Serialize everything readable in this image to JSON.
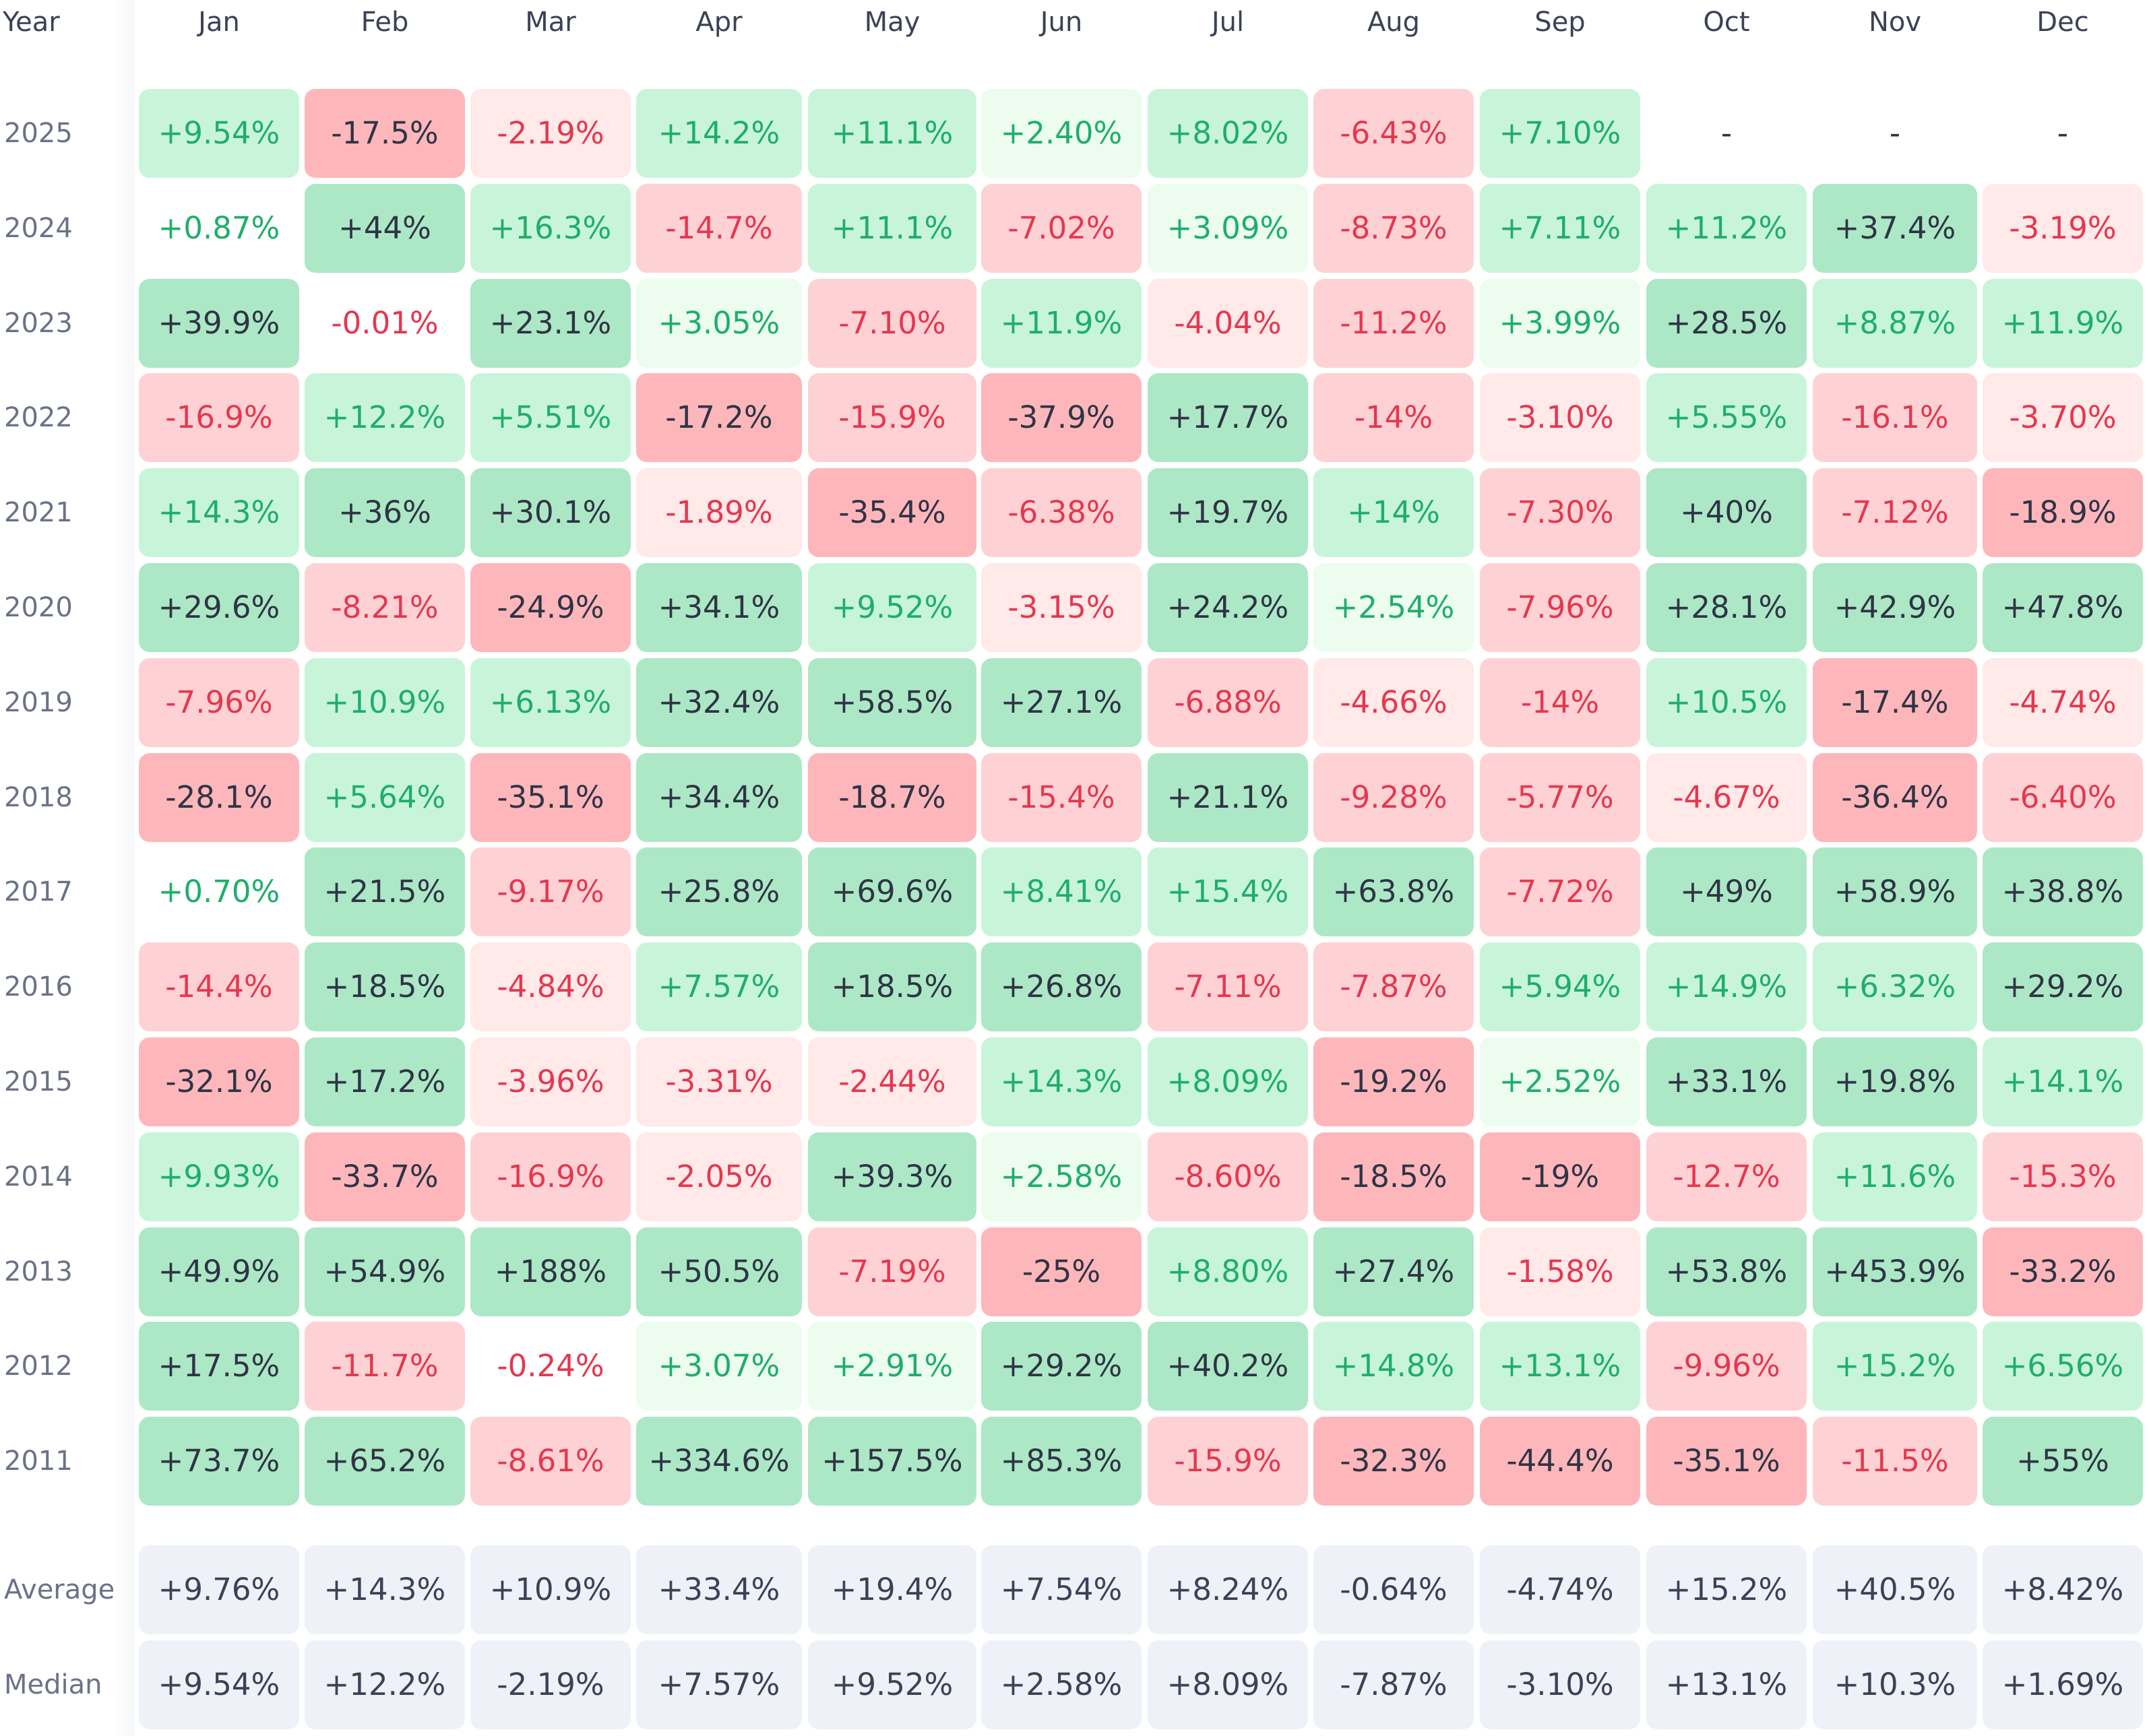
{
  "header": {
    "year_label": "Year"
  },
  "colors": {
    "pos_text": "#1fae6a",
    "neg_text": "#e5374f",
    "dark_text": "#2f3445",
    "pos_shades": [
      "#ffffff",
      "#ecfcef",
      "#c8f5da",
      "#ace8c6"
    ],
    "neg_shades": [
      "#ffffff",
      "#ffe9e9",
      "#fed2d4",
      "#fdb7bb"
    ],
    "summary_bg": "#eef1f7"
  },
  "chart_data": {
    "type": "heatmap",
    "x_categories": [
      "Jan",
      "Feb",
      "Mar",
      "Apr",
      "May",
      "Jun",
      "Jul",
      "Aug",
      "Sep",
      "Oct",
      "Nov",
      "Dec"
    ],
    "rows": [
      {
        "year": "2025",
        "cells": [
          "+9.54%",
          "-17.5%",
          "-2.19%",
          "+14.2%",
          "+11.1%",
          "+2.40%",
          "+8.02%",
          "-6.43%",
          "+7.10%",
          "-",
          "-",
          "-"
        ],
        "values": [
          9.54,
          -17.5,
          -2.19,
          14.2,
          11.1,
          2.4,
          8.02,
          -6.43,
          7.1,
          null,
          null,
          null
        ]
      },
      {
        "year": "2024",
        "cells": [
          "+0.87%",
          "+44%",
          "+16.3%",
          "-14.7%",
          "+11.1%",
          "-7.02%",
          "+3.09%",
          "-8.73%",
          "+7.11%",
          "+11.2%",
          "+37.4%",
          "-3.19%"
        ],
        "values": [
          0.87,
          44,
          16.3,
          -14.7,
          11.1,
          -7.02,
          3.09,
          -8.73,
          7.11,
          11.2,
          37.4,
          -3.19
        ]
      },
      {
        "year": "2023",
        "cells": [
          "+39.9%",
          "-0.01%",
          "+23.1%",
          "+3.05%",
          "-7.10%",
          "+11.9%",
          "-4.04%",
          "-11.2%",
          "+3.99%",
          "+28.5%",
          "+8.87%",
          "+11.9%"
        ],
        "values": [
          39.9,
          -0.01,
          23.1,
          3.05,
          -7.1,
          11.9,
          -4.04,
          -11.2,
          3.99,
          28.5,
          8.87,
          11.9
        ]
      },
      {
        "year": "2022",
        "cells": [
          "-16.9%",
          "+12.2%",
          "+5.51%",
          "-17.2%",
          "-15.9%",
          "-37.9%",
          "+17.7%",
          "-14%",
          "-3.10%",
          "+5.55%",
          "-16.1%",
          "-3.70%"
        ],
        "values": [
          -16.9,
          12.2,
          5.51,
          -17.2,
          -15.9,
          -37.9,
          17.7,
          -14,
          -3.1,
          5.55,
          -16.1,
          -3.7
        ]
      },
      {
        "year": "2021",
        "cells": [
          "+14.3%",
          "+36%",
          "+30.1%",
          "-1.89%",
          "-35.4%",
          "-6.38%",
          "+19.7%",
          "+14%",
          "-7.30%",
          "+40%",
          "-7.12%",
          "-18.9%"
        ],
        "values": [
          14.3,
          36,
          30.1,
          -1.89,
          -35.4,
          -6.38,
          19.7,
          14,
          -7.3,
          40,
          -7.12,
          -18.9
        ]
      },
      {
        "year": "2020",
        "cells": [
          "+29.6%",
          "-8.21%",
          "-24.9%",
          "+34.1%",
          "+9.52%",
          "-3.15%",
          "+24.2%",
          "+2.54%",
          "-7.96%",
          "+28.1%",
          "+42.9%",
          "+47.8%"
        ],
        "values": [
          29.6,
          -8.21,
          -24.9,
          34.1,
          9.52,
          -3.15,
          24.2,
          2.54,
          -7.96,
          28.1,
          42.9,
          47.8
        ]
      },
      {
        "year": "2019",
        "cells": [
          "-7.96%",
          "+10.9%",
          "+6.13%",
          "+32.4%",
          "+58.5%",
          "+27.1%",
          "-6.88%",
          "-4.66%",
          "-14%",
          "+10.5%",
          "-17.4%",
          "-4.74%"
        ],
        "values": [
          -7.96,
          10.9,
          6.13,
          32.4,
          58.5,
          27.1,
          -6.88,
          -4.66,
          -14,
          10.5,
          -17.4,
          -4.74
        ]
      },
      {
        "year": "2018",
        "cells": [
          "-28.1%",
          "+5.64%",
          "-35.1%",
          "+34.4%",
          "-18.7%",
          "-15.4%",
          "+21.1%",
          "-9.28%",
          "-5.77%",
          "-4.67%",
          "-36.4%",
          "-6.40%"
        ],
        "values": [
          -28.1,
          5.64,
          -35.1,
          34.4,
          -18.7,
          -15.4,
          21.1,
          -9.28,
          -5.77,
          -4.67,
          -36.4,
          -6.4
        ]
      },
      {
        "year": "2017",
        "cells": [
          "+0.70%",
          "+21.5%",
          "-9.17%",
          "+25.8%",
          "+69.6%",
          "+8.41%",
          "+15.4%",
          "+63.8%",
          "-7.72%",
          "+49%",
          "+58.9%",
          "+38.8%"
        ],
        "values": [
          0.7,
          21.5,
          -9.17,
          25.8,
          69.6,
          8.41,
          15.4,
          63.8,
          -7.72,
          49,
          58.9,
          38.8
        ]
      },
      {
        "year": "2016",
        "cells": [
          "-14.4%",
          "+18.5%",
          "-4.84%",
          "+7.57%",
          "+18.5%",
          "+26.8%",
          "-7.11%",
          "-7.87%",
          "+5.94%",
          "+14.9%",
          "+6.32%",
          "+29.2%"
        ],
        "values": [
          -14.4,
          18.5,
          -4.84,
          7.57,
          18.5,
          26.8,
          -7.11,
          -7.87,
          5.94,
          14.9,
          6.32,
          29.2
        ]
      },
      {
        "year": "2015",
        "cells": [
          "-32.1%",
          "+17.2%",
          "-3.96%",
          "-3.31%",
          "-2.44%",
          "+14.3%",
          "+8.09%",
          "-19.2%",
          "+2.52%",
          "+33.1%",
          "+19.8%",
          "+14.1%"
        ],
        "values": [
          -32.1,
          17.2,
          -3.96,
          -3.31,
          -2.44,
          14.3,
          8.09,
          -19.2,
          2.52,
          33.1,
          19.8,
          14.1
        ]
      },
      {
        "year": "2014",
        "cells": [
          "+9.93%",
          "-33.7%",
          "-16.9%",
          "-2.05%",
          "+39.3%",
          "+2.58%",
          "-8.60%",
          "-18.5%",
          "-19%",
          "-12.7%",
          "+11.6%",
          "-15.3%"
        ],
        "values": [
          9.93,
          -33.7,
          -16.9,
          -2.05,
          39.3,
          2.58,
          -8.6,
          -18.5,
          -19,
          -12.7,
          11.6,
          -15.3
        ]
      },
      {
        "year": "2013",
        "cells": [
          "+49.9%",
          "+54.9%",
          "+188%",
          "+50.5%",
          "-7.19%",
          "-25%",
          "+8.80%",
          "+27.4%",
          "-1.58%",
          "+53.8%",
          "+453.9%",
          "-33.2%"
        ],
        "values": [
          49.9,
          54.9,
          188,
          50.5,
          -7.19,
          -25,
          8.8,
          27.4,
          -1.58,
          53.8,
          453.9,
          -33.2
        ]
      },
      {
        "year": "2012",
        "cells": [
          "+17.5%",
          "-11.7%",
          "-0.24%",
          "+3.07%",
          "+2.91%",
          "+29.2%",
          "+40.2%",
          "+14.8%",
          "+13.1%",
          "-9.96%",
          "+15.2%",
          "+6.56%"
        ],
        "values": [
          17.5,
          -11.7,
          -0.24,
          3.07,
          2.91,
          29.2,
          40.2,
          14.8,
          13.1,
          -9.96,
          15.2,
          6.56
        ]
      },
      {
        "year": "2011",
        "cells": [
          "+73.7%",
          "+65.2%",
          "-8.61%",
          "+334.6%",
          "+157.5%",
          "+85.3%",
          "-15.9%",
          "-32.3%",
          "-44.4%",
          "-35.1%",
          "-11.5%",
          "+55%"
        ],
        "values": [
          73.7,
          65.2,
          -8.61,
          334.6,
          157.5,
          85.3,
          -15.9,
          -32.3,
          -44.4,
          -35.1,
          -11.5,
          55
        ]
      }
    ],
    "summary": [
      {
        "label": "Average",
        "cells": [
          "+9.76%",
          "+14.3%",
          "+10.9%",
          "+33.4%",
          "+19.4%",
          "+7.54%",
          "+8.24%",
          "-0.64%",
          "-4.74%",
          "+15.2%",
          "+40.5%",
          "+8.42%"
        ]
      },
      {
        "label": "Median",
        "cells": [
          "+9.54%",
          "+12.2%",
          "-2.19%",
          "+7.57%",
          "+9.52%",
          "+2.58%",
          "+8.09%",
          "-7.87%",
          "-3.10%",
          "+13.1%",
          "+10.3%",
          "+1.69%"
        ]
      }
    ]
  }
}
